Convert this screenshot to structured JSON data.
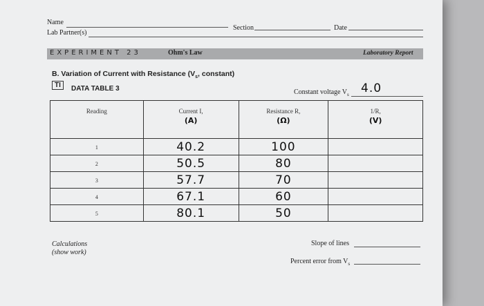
{
  "header": {
    "name_label": "Name",
    "lab_partners_label": "Lab Partner(s)",
    "section_label": "Section",
    "date_label": "Date"
  },
  "banner": {
    "experiment": "EXPERIMENT 23",
    "title": "Ohm's Law",
    "report": "Laboratory Report"
  },
  "section_title": {
    "text": "B. Variation of Current with Resistance (V",
    "sub": "s",
    "rest": ", constant)"
  },
  "table_label": {
    "icon": "TI",
    "text": "DATA TABLE 3"
  },
  "constant_voltage": {
    "label": "Constant voltage V",
    "sub": "s",
    "value": "4.0"
  },
  "table": {
    "columns": [
      {
        "title": "Reading"
      },
      {
        "title": "Current I,",
        "unit": "(A)"
      },
      {
        "title": "Resistance R,",
        "unit": "(Ω)"
      },
      {
        "title": "1/R,",
        "unit": "(V)"
      }
    ],
    "rows": [
      [
        "1",
        "40.2",
        "100"
      ],
      [
        "2",
        "50.5",
        "80"
      ],
      [
        "3",
        "57.7",
        "70"
      ],
      [
        "4",
        "67.1",
        "60"
      ],
      [
        "5",
        "80.1",
        "50"
      ]
    ]
  },
  "footer": {
    "calculations": "Calculations",
    "show_work": "(show work)",
    "slope": "Slope of lines",
    "percent_error": "Percent error from V",
    "percent_error_sub": "s"
  }
}
